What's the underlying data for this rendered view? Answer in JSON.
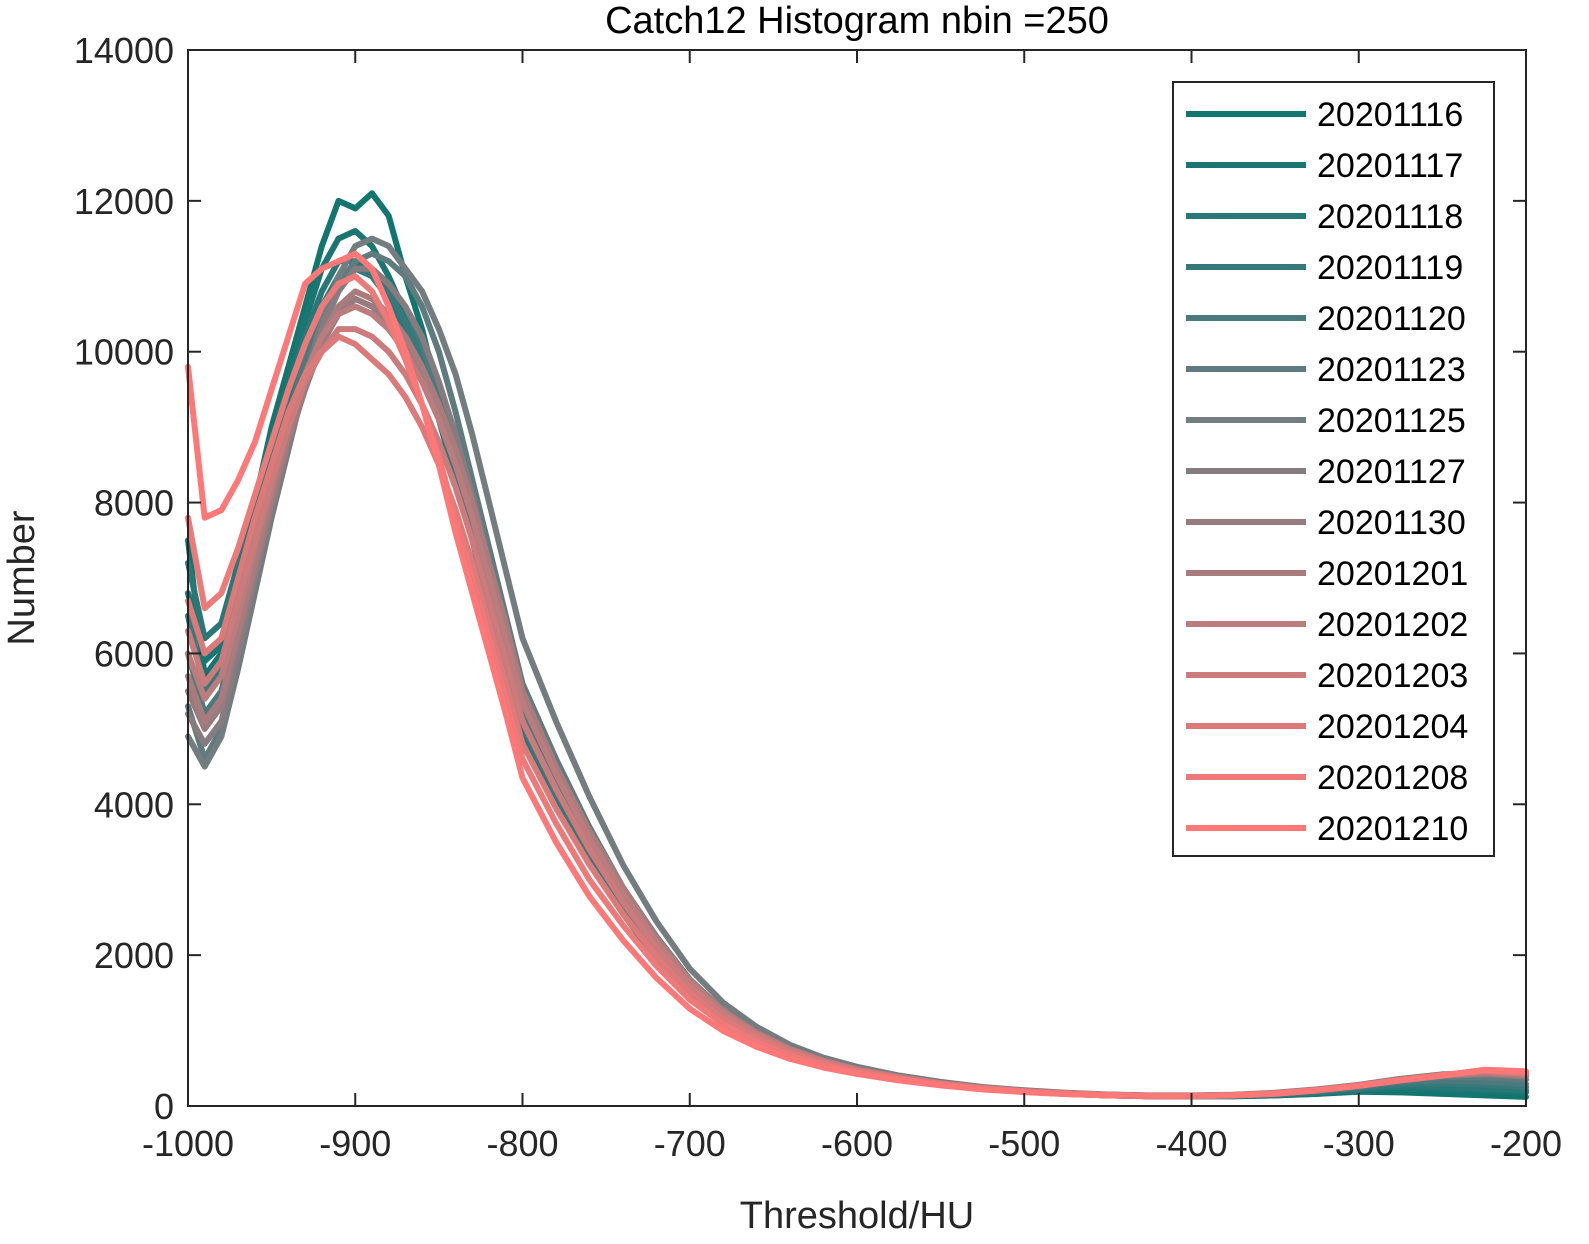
{
  "chart_data": {
    "type": "line",
    "title": "Catch12  Histogram nbin =250",
    "xlabel": "Threshold/HU",
    "ylabel": "Number",
    "xlim": [
      -1000,
      -200
    ],
    "ylim": [
      0,
      14000
    ],
    "xticks": [
      -1000,
      -900,
      -800,
      -700,
      -600,
      -500,
      -400,
      -300,
      -200
    ],
    "yticks": [
      0,
      2000,
      4000,
      6000,
      8000,
      10000,
      12000,
      14000
    ],
    "xtick_labels": [
      "-1000",
      "-900",
      "-800",
      "-700",
      "-600",
      "-500",
      "-400",
      "-300",
      "-200"
    ],
    "ytick_labels": [
      "0",
      "2000",
      "4000",
      "6000",
      "8000",
      "10000",
      "12000",
      "14000"
    ],
    "grid": false,
    "legend_position": "top-right",
    "x": [
      -1000,
      -990,
      -980,
      -970,
      -960,
      -950,
      -940,
      -930,
      -920,
      -910,
      -900,
      -890,
      -880,
      -870,
      -860,
      -850,
      -840,
      -830,
      -820,
      -810,
      -800,
      -780,
      -760,
      -740,
      -720,
      -700,
      -680,
      -660,
      -640,
      -620,
      -600,
      -575,
      -550,
      -525,
      -500,
      -475,
      -450,
      -425,
      -400,
      -375,
      -350,
      -325,
      -300,
      -275,
      -250,
      -225,
      -200
    ],
    "series": [
      {
        "name": "20201116",
        "color": "#11766F",
        "values": [
          7500,
          5700,
          6000,
          7000,
          8000,
          9000,
          9800,
          10600,
          11400,
          12000,
          11900,
          12100,
          11800,
          11000,
          10300,
          9400,
          8500,
          7600,
          6700,
          5900,
          5000,
          4100,
          3300,
          2600,
          2000,
          1500,
          1150,
          900,
          700,
          560,
          460,
          360,
          290,
          230,
          190,
          160,
          140,
          130,
          130,
          130,
          140,
          160,
          190,
          180,
          160,
          140,
          120
        ]
      },
      {
        "name": "20201117",
        "color": "#1A7673",
        "values": [
          6800,
          5900,
          6100,
          7000,
          7900,
          8800,
          9600,
          10400,
          11100,
          11500,
          11600,
          11400,
          11000,
          10500,
          9900,
          9200,
          8400,
          7600,
          6700,
          5900,
          5000,
          4100,
          3300,
          2600,
          2000,
          1500,
          1150,
          900,
          700,
          560,
          460,
          360,
          290,
          230,
          190,
          160,
          140,
          130,
          130,
          130,
          140,
          160,
          200,
          230,
          220,
          200,
          180
        ]
      },
      {
        "name": "20201118",
        "color": "#287877",
        "values": [
          7200,
          6200,
          6400,
          7200,
          8000,
          8800,
          9500,
          10200,
          10800,
          11200,
          11200,
          11000,
          10700,
          10300,
          9800,
          9100,
          8300,
          7500,
          6600,
          5800,
          4950,
          4050,
          3250,
          2550,
          1950,
          1480,
          1130,
          880,
          690,
          550,
          450,
          355,
          285,
          228,
          190,
          160,
          140,
          130,
          130,
          135,
          150,
          180,
          220,
          260,
          250,
          230,
          210
        ]
      },
      {
        "name": "20201119",
        "color": "#37797A",
        "values": [
          6500,
          5500,
          5800,
          6700,
          7600,
          8500,
          9300,
          10000,
          10600,
          11000,
          11100,
          11000,
          10800,
          10400,
          9900,
          9200,
          8400,
          7600,
          6700,
          5900,
          5050,
          4150,
          3350,
          2650,
          2050,
          1530,
          1170,
          910,
          710,
          570,
          465,
          365,
          292,
          232,
          192,
          162,
          142,
          132,
          132,
          138,
          155,
          190,
          240,
          290,
          300,
          280,
          250
        ]
      },
      {
        "name": "20201120",
        "color": "#4A7A7D",
        "values": [
          6000,
          5200,
          5500,
          6400,
          7300,
          8300,
          9100,
          9900,
          10500,
          10900,
          11100,
          11100,
          10900,
          10600,
          10100,
          9400,
          8600,
          7800,
          6900,
          6100,
          5200,
          4250,
          3450,
          2750,
          2100,
          1580,
          1200,
          930,
          720,
          580,
          470,
          370,
          295,
          235,
          195,
          165,
          145,
          135,
          135,
          140,
          160,
          200,
          250,
          320,
          340,
          320,
          290
        ]
      },
      {
        "name": "20201123",
        "color": "#5F7B7F",
        "values": [
          5300,
          4600,
          5000,
          5900,
          6900,
          7900,
          8800,
          9700,
          10400,
          10900,
          11200,
          11300,
          11200,
          11000,
          10600,
          10000,
          9200,
          8300,
          7400,
          6500,
          5600,
          4600,
          3700,
          2900,
          2250,
          1680,
          1270,
          980,
          760,
          600,
          490,
          385,
          305,
          242,
          200,
          170,
          150,
          138,
          138,
          145,
          170,
          215,
          270,
          340,
          380,
          380,
          350
        ]
      },
      {
        "name": "20201125",
        "color": "#737C7F",
        "values": [
          4900,
          4500,
          4900,
          5800,
          6800,
          7800,
          8700,
          9600,
          10400,
          11000,
          11400,
          11500,
          11400,
          11100,
          10800,
          10300,
          9700,
          8900,
          8000,
          7100,
          6200,
          5100,
          4100,
          3200,
          2450,
          1820,
          1370,
          1050,
          810,
          640,
          520,
          405,
          320,
          252,
          208,
          175,
          153,
          140,
          140,
          148,
          175,
          220,
          280,
          360,
          420,
          430,
          400
        ]
      },
      {
        "name": "20201127",
        "color": "#867C80",
        "values": [
          5200,
          4800,
          5100,
          6000,
          7000,
          7900,
          8800,
          9600,
          10300,
          10800,
          11100,
          11100,
          10900,
          10600,
          10200,
          9600,
          8900,
          8100,
          7200,
          6300,
          5400,
          4400,
          3550,
          2800,
          2150,
          1620,
          1230,
          950,
          740,
          590,
          480,
          378,
          300,
          238,
          197,
          167,
          147,
          136,
          136,
          143,
          165,
          210,
          270,
          345,
          400,
          420,
          390
        ]
      },
      {
        "name": "20201130",
        "color": "#977B7E",
        "values": [
          5500,
          5000,
          5300,
          6200,
          7100,
          8000,
          8800,
          9500,
          10100,
          10500,
          10700,
          10600,
          10400,
          10100,
          9700,
          9200,
          8600,
          7900,
          7100,
          6300,
          5450,
          4450,
          3600,
          2850,
          2200,
          1650,
          1250,
          965,
          750,
          598,
          485,
          382,
          302,
          240,
          198,
          168,
          148,
          137,
          137,
          144,
          168,
          212,
          272,
          348,
          405,
          430,
          400
        ]
      },
      {
        "name": "20201201",
        "color": "#A87B7D",
        "values": [
          5700,
          5100,
          5400,
          6300,
          7200,
          8100,
          8900,
          9600,
          10200,
          10600,
          10800,
          10700,
          10500,
          10200,
          9800,
          9300,
          8700,
          8000,
          7200,
          6400,
          5500,
          4500,
          3650,
          2900,
          2230,
          1670,
          1265,
          975,
          755,
          602,
          488,
          384,
          304,
          241,
          199,
          169,
          149,
          138,
          138,
          146,
          170,
          215,
          275,
          350,
          410,
          440,
          410
        ]
      },
      {
        "name": "20201202",
        "color": "#BA7C7C",
        "values": [
          6000,
          5400,
          5700,
          6500,
          7400,
          8200,
          9000,
          9700,
          10200,
          10500,
          10600,
          10500,
          10300,
          10000,
          9600,
          9100,
          8500,
          7800,
          7000,
          6200,
          5350,
          4400,
          3550,
          2820,
          2180,
          1640,
          1245,
          962,
          748,
          596,
          484,
          381,
          302,
          240,
          198,
          168,
          148,
          137,
          137,
          145,
          168,
          213,
          273,
          348,
          410,
          450,
          420
        ]
      },
      {
        "name": "20201203",
        "color": "#CB7B7B",
        "values": [
          6300,
          5600,
          5900,
          6700,
          7500,
          8300,
          9000,
          9600,
          10000,
          10300,
          10300,
          10200,
          10000,
          9700,
          9300,
          8800,
          8200,
          7500,
          6700,
          5900,
          5100,
          4200,
          3400,
          2700,
          2100,
          1580,
          1210,
          940,
          730,
          585,
          476,
          376,
          298,
          237,
          196,
          167,
          147,
          136,
          136,
          144,
          167,
          212,
          272,
          348,
          410,
          460,
          430
        ]
      },
      {
        "name": "20201204",
        "color": "#DC7A7A",
        "values": [
          6700,
          6000,
          6200,
          7000,
          7800,
          8500,
          9200,
          9700,
          10000,
          10200,
          10100,
          9900,
          9700,
          9400,
          9000,
          8500,
          7900,
          7200,
          6400,
          5600,
          4800,
          3950,
          3200,
          2550,
          1980,
          1500,
          1150,
          900,
          705,
          568,
          465,
          368,
          292,
          233,
          193,
          165,
          145,
          134,
          134,
          142,
          165,
          210,
          270,
          345,
          410,
          470,
          440
        ]
      },
      {
        "name": "20201208",
        "color": "#ED7979",
        "values": [
          7800,
          6600,
          6800,
          7400,
          8100,
          8800,
          9500,
          10100,
          10600,
          10900,
          11000,
          10800,
          10400,
          9900,
          9300,
          8600,
          7800,
          7000,
          6200,
          5400,
          4600,
          3750,
          3000,
          2400,
          1860,
          1410,
          1085,
          850,
          670,
          542,
          446,
          355,
          283,
          227,
          189,
          162,
          143,
          133,
          133,
          141,
          164,
          208,
          268,
          342,
          408,
          475,
          450
        ]
      },
      {
        "name": "20201210",
        "color": "#FF7777",
        "values": [
          9800,
          7800,
          7900,
          8300,
          8800,
          9500,
          10200,
          10900,
          11100,
          11200,
          11300,
          11100,
          10600,
          10000,
          9300,
          8500,
          7600,
          6800,
          6000,
          5200,
          4350,
          3500,
          2780,
          2200,
          1700,
          1290,
          995,
          785,
          625,
          510,
          425,
          340,
          273,
          220,
          184,
          158,
          140,
          130,
          130,
          139,
          162,
          206,
          266,
          340,
          405,
          480,
          460
        ]
      }
    ]
  }
}
